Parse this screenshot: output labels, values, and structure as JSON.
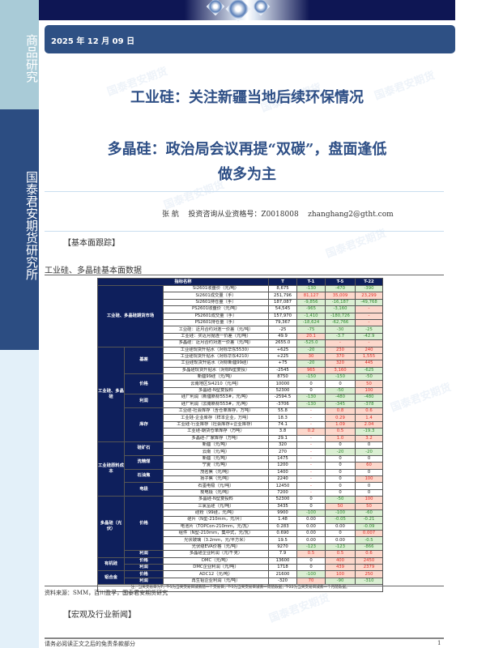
{
  "sidebar": {
    "top_label": "商品研究",
    "mid_label": "国泰君安期货研究所"
  },
  "header": {
    "date": "2025 年 12 月 09 日"
  },
  "titles": {
    "line1": "工业硅：关注新疆当地后续环保情况",
    "line2": "多晶硅：政治局会议再提“双碳”，盘面逢低",
    "line3": "做多为主"
  },
  "author": {
    "name": "张  航",
    "cert_label": "投资咨询从业资格号：Z0018008",
    "email": "zhanghang2@gtht.com"
  },
  "sections": {
    "fundamentals": "【基本面跟踪】",
    "table_title": "工业硅、多晶硅基本面数据",
    "source": "资料来源：SMM，百川盈孚，国泰君安期货研究",
    "news": "【宏观及行业新闻】"
  },
  "footer": {
    "disclaimer": "请务必阅读正文之后的免责条款部分",
    "page": "1"
  },
  "watermark": "国泰君安期货",
  "colors": {
    "navy": "#0e1f5c",
    "brand_blue": "#2e5084",
    "up_red": "#e0302a",
    "down_green": "#2f8a2f"
  },
  "table": {
    "headers": [
      "指标名称",
      "T",
      "T-1",
      "T-5",
      "T-22"
    ],
    "note": "注：当天交易日为T，T-1为当天交易日减去前一个交易日，T-5为当天交易日减去一周前数据，T-22为当天交易日减去一个月前数据。",
    "groups": [
      {
        "label": "工业硅、多晶硅期货市场",
        "subgroups": [
          {
            "label": null,
            "rows": [
              {
                "name": "Si2601收盘价（元/吨）",
                "t": "8,675",
                "t1": "-130",
                "t5": "-470",
                "t22": "-390",
                "tone": "ggg"
              },
              {
                "name": "Si2601成交量（手）",
                "t": "251,796",
                "t1": "81,127",
                "t5": "35,009",
                "t22": "23,299",
                "tone": "rrr"
              },
              {
                "name": "Si2601持仓量（手）",
                "t": "187,087",
                "t1": "-9,856",
                "t5": "-16,187",
                "t22": "-49,768",
                "tone": "ggg"
              },
              {
                "name": "PS2601收盘价（元/吨）",
                "t": "54,545",
                "t1": "-965",
                "t5": "-3,160",
                "t22": "-",
                "tone": "ggr"
              },
              {
                "name": "PS2601成交量（手）",
                "t": "157,970",
                "t1": "-1,410",
                "t5": "-180,726",
                "t22": "-",
                "tone": "ggr"
              },
              {
                "name": "PS2601持仓量（手）",
                "t": "79,367",
                "t1": "-18,624",
                "t5": "-62,766",
                "t22": "-",
                "tone": "ggr"
              },
              {
                "name": "工业硅：近月合约对连一价差（元/吨）",
                "t": "-25",
                "t1": "-75",
                "t5": "-30",
                "t22": "-25",
                "tone": "ggg"
              },
              {
                "name": "工业硅：买近月抛连一价差（元/吨）",
                "t": "49.9",
                "t1": "20.1",
                "t5": "-3.7",
                "t22": "-42.9",
                "tone": "rgg"
              },
              {
                "name": "多晶硅：近月合约对连一价差（元/吨）",
                "t": "2655.0",
                "t1": "-525.0",
                "t5": "-",
                "t22": "-",
                "tone": "grr"
              }
            ]
          }
        ]
      },
      {
        "label": "工业硅、多晶硅",
        "subgroups": [
          {
            "label": "基差",
            "rows": [
              {
                "name": "工业硅现货升贴水（对标华东5530）",
                "t": "+625",
                "t1": "-20",
                "t5": "230",
                "t22": "240",
                "tone": "grr"
              },
              {
                "name": "工业硅现货升贴水（对标华东4210）",
                "t": "+225",
                "t1": "30",
                "t5": "370",
                "t22": "1,555",
                "tone": "rrr"
              },
              {
                "name": "工业硅现货升贴水（对标新疆99硅）",
                "t": "+75",
                "t1": "-20",
                "t5": "320",
                "t22": "445",
                "tone": "grr"
              },
              {
                "name": "多晶硅现货升贴水（对标N型复投）",
                "t": "-2545",
                "t1": "965",
                "t5": "3,160",
                "t22": "-625",
                "tone": "rrg"
              }
            ]
          },
          {
            "label": "价格",
            "rows": [
              {
                "name": "新疆99硅（元/吨）",
                "t": "8750",
                "t1": "-150",
                "t5": "-150",
                "t22": "-50",
                "tone": "ggg"
              },
              {
                "name": "云南地区Si4210（元/吨）",
                "t": "10000",
                "t1": "0",
                "t5": "0",
                "t22": "50",
                "tone": "nnr"
              },
              {
                "name": "多晶硅-N型复投料",
                "t": "52300",
                "t1": "0",
                "t5": "-50",
                "t22": "100",
                "tone": "ngr"
              }
            ]
          },
          {
            "label": "利润",
            "rows": [
              {
                "name": "硅厂利润（新疆新标553#，元/吨）",
                "t": "-2594.5",
                "t1": "-130",
                "t5": "-480",
                "t22": "-480",
                "tone": "ggg"
              },
              {
                "name": "硅厂利润（云南新标553#，元/吨）",
                "t": "-3706",
                "t1": "-130",
                "t5": "-345",
                "t22": "-378",
                "tone": "ggg"
              }
            ]
          },
          {
            "label": "库存",
            "rows": [
              {
                "name": "工业硅-社会库存（含仓单库存，万吨）",
                "t": "55.8",
                "t1": "-",
                "t5": "0.8",
                "t22": "0.6",
                "tone": "Rrr"
              },
              {
                "name": "工业硅-企业库存（样本企业，万吨）",
                "t": "18.3",
                "t1": "-",
                "t5": "0.29",
                "t22": "1.4",
                "tone": "Rrr"
              },
              {
                "name": "工业硅-行业库存（社会库存+企业库存）",
                "t": "74.1",
                "t1": "-",
                "t5": "1.09",
                "t22": "2.04",
                "tone": "Rrr"
              },
              {
                "name": "工业硅-期货仓单库存（万吨）",
                "t": "3.8",
                "t1": "0.2",
                "t5": "0.5",
                "t22": "-19.3",
                "tone": "rrg"
              },
              {
                "name": "多晶硅-厂家库存（万吨）",
                "t": "29.1",
                "t1": "-",
                "t5": "1.0",
                "t22": "3.2",
                "tone": "Rrr"
              }
            ]
          }
        ]
      },
      {
        "label": "工业硅原料成本",
        "subgroups": [
          {
            "label": "硅矿石",
            "rows": [
              {
                "name": "新疆（元/吨）",
                "t": "320",
                "t1": "-",
                "t5": "0",
                "t22": "0",
                "tone": "Rnn"
              },
              {
                "name": "云南（元/吨）",
                "t": "270",
                "t1": "-",
                "t5": "-20",
                "t22": "-20",
                "tone": "Rgg"
              }
            ]
          },
          {
            "label": "洗精煤",
            "rows": [
              {
                "name": "新疆（元/吨）",
                "t": "1475",
                "t1": "-",
                "t5": "0",
                "t22": "0",
                "tone": "Rnn"
              },
              {
                "name": "宁夏（元/吨）",
                "t": "1200",
                "t1": "-",
                "t5": "0",
                "t22": "60",
                "tone": "Rnr"
              }
            ]
          },
          {
            "label": "石油焦",
            "rows": [
              {
                "name": "茂名焦（元/吨）",
                "t": "1400",
                "t1": "-",
                "t5": "0",
                "t22": "0",
                "tone": "Rnn"
              },
              {
                "name": "扬子焦（元/吨）",
                "t": "2240",
                "t1": "-",
                "t5": "0",
                "t22": "100",
                "tone": "Rnr"
              }
            ]
          },
          {
            "label": "电极",
            "rows": [
              {
                "name": "石墨电极（元/吨）",
                "t": "12450",
                "t1": "-",
                "t5": "0",
                "t22": "0",
                "tone": "Rnn"
              },
              {
                "name": "炭电极（元/吨）",
                "t": "7200",
                "t1": "-",
                "t5": "0",
                "t22": "0",
                "tone": "Rnn"
              }
            ]
          }
        ]
      },
      {
        "label": "多晶硅（光伏）",
        "subgroups": [
          {
            "label": "价格",
            "rows": [
              {
                "name": "多晶硅-N型复投料",
                "t": "52300",
                "t1": "0",
                "t5": "-50",
                "t22": "100",
                "tone": "ngr"
              },
              {
                "name": "三氯氢硅（元/吨）",
                "t": "3435",
                "t1": "0",
                "t5": "50",
                "t22": "50",
                "tone": "nrr"
              },
              {
                "name": "硅粉（99硅，元/吨）",
                "t": "9900",
                "t1": "-100",
                "t5": "-100",
                "t22": "-60",
                "tone": "ggg"
              },
              {
                "name": "硅片（N型-210mm，元/片）",
                "t": "1.48",
                "t1": "0.00",
                "t5": "-0.05",
                "t22": "-0.21",
                "tone": "ngg"
              },
              {
                "name": "电池片（TOPCon-210mm，元/瓦）",
                "t": "0.283",
                "t1": "0.00",
                "t5": "0.00",
                "t22": "-0.09",
                "tone": "nng"
              },
              {
                "name": "组件（N型-210mm，集中式，元/瓦）",
                "t": "0.690",
                "t1": "0.00",
                "t5": "0",
                "t22": "0.007",
                "tone": "nnr"
              },
              {
                "name": "光伏玻璃（3.2mm，元/平方米）",
                "t": "19.5",
                "t1": "0.00",
                "t5": "0.00",
                "t22": "-0.5",
                "tone": "nng"
              },
              {
                "name": "光伏级EVA价格（元/吨）",
                "t": "9270",
                "t1": "-123",
                "t5": "-123",
                "t22": "-866",
                "tone": "ggg"
              }
            ]
          },
          {
            "label": "利润",
            "rows": [
              {
                "name": "多晶硅企业利润（元/千克）",
                "t": "7.9",
                "t1": "0.5",
                "t5": "0.5",
                "t22": "0.6",
                "tone": "rrr"
              }
            ]
          }
        ]
      },
      {
        "label": "有机硅",
        "subgroups": [
          {
            "label": "价格",
            "rows": [
              {
                "name": "DMC（元/吨）",
                "t": "13600",
                "t1": "0",
                "t5": "400",
                "t22": "2450",
                "tone": "nrr"
              }
            ]
          },
          {
            "label": "利润",
            "rows": [
              {
                "name": "DMC企业利润（元/吨）",
                "t": "1718",
                "t1": "0",
                "t5": "439",
                "t22": "2379",
                "tone": "nrr"
              }
            ]
          }
        ]
      },
      {
        "label": "铝合金",
        "subgroups": [
          {
            "label": "价格",
            "rows": [
              {
                "name": "ADC12（元/吨）",
                "t": "21600",
                "t1": "-100",
                "t5": "100",
                "t22": "250",
                "tone": "grr"
              }
            ]
          },
          {
            "label": "利润",
            "rows": [
              {
                "name": "再生铝企业利润（元/吨）",
                "t": "-320",
                "t1": "70",
                "t5": "-90",
                "t22": "-310",
                "tone": "rgg"
              }
            ]
          }
        ]
      }
    ]
  }
}
